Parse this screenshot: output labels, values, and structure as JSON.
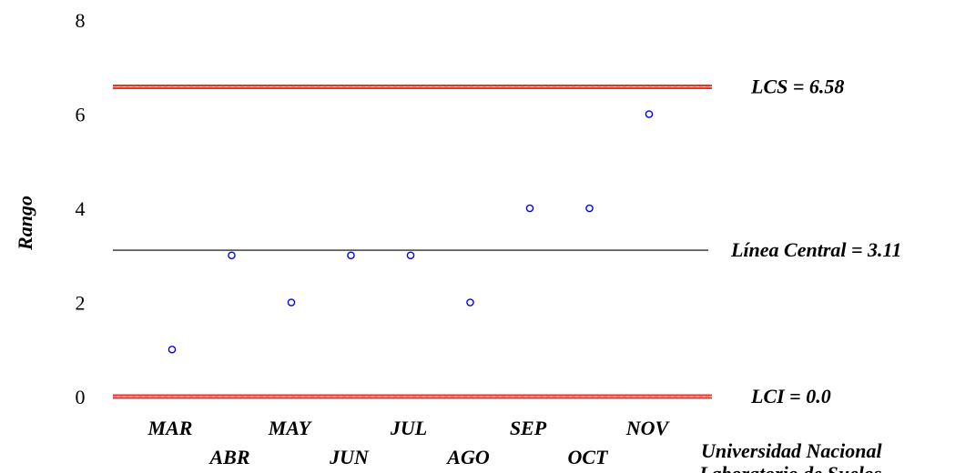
{
  "chart_data": {
    "type": "scatter",
    "ylabel": "Rango",
    "ylim": [
      0,
      8
    ],
    "yticks": [
      "0",
      "2",
      "4",
      "6",
      "8"
    ],
    "categories": [
      "MAR",
      "ABR",
      "MAY",
      "JUN",
      "JUL",
      "AGO",
      "SEP",
      "OCT",
      "NOV"
    ],
    "values": [
      1,
      3,
      2,
      3,
      3,
      2,
      4,
      4,
      6
    ],
    "marker_color": "#0000ff",
    "reference_lines": [
      {
        "label": "LCS = 6.58",
        "value": 6.58,
        "color": "#e8352a",
        "style": "double"
      },
      {
        "label": "Línea Central = 3.11",
        "value": 3.11,
        "color": "#000000",
        "style": "solid"
      },
      {
        "label": "LCI = 0.0",
        "value": 0.0,
        "color": "#e8352a",
        "style": "double"
      }
    ],
    "grid": false
  },
  "footer": {
    "line1": "Universidad Nacional",
    "line2": "Laboratorio de Suelos"
  }
}
